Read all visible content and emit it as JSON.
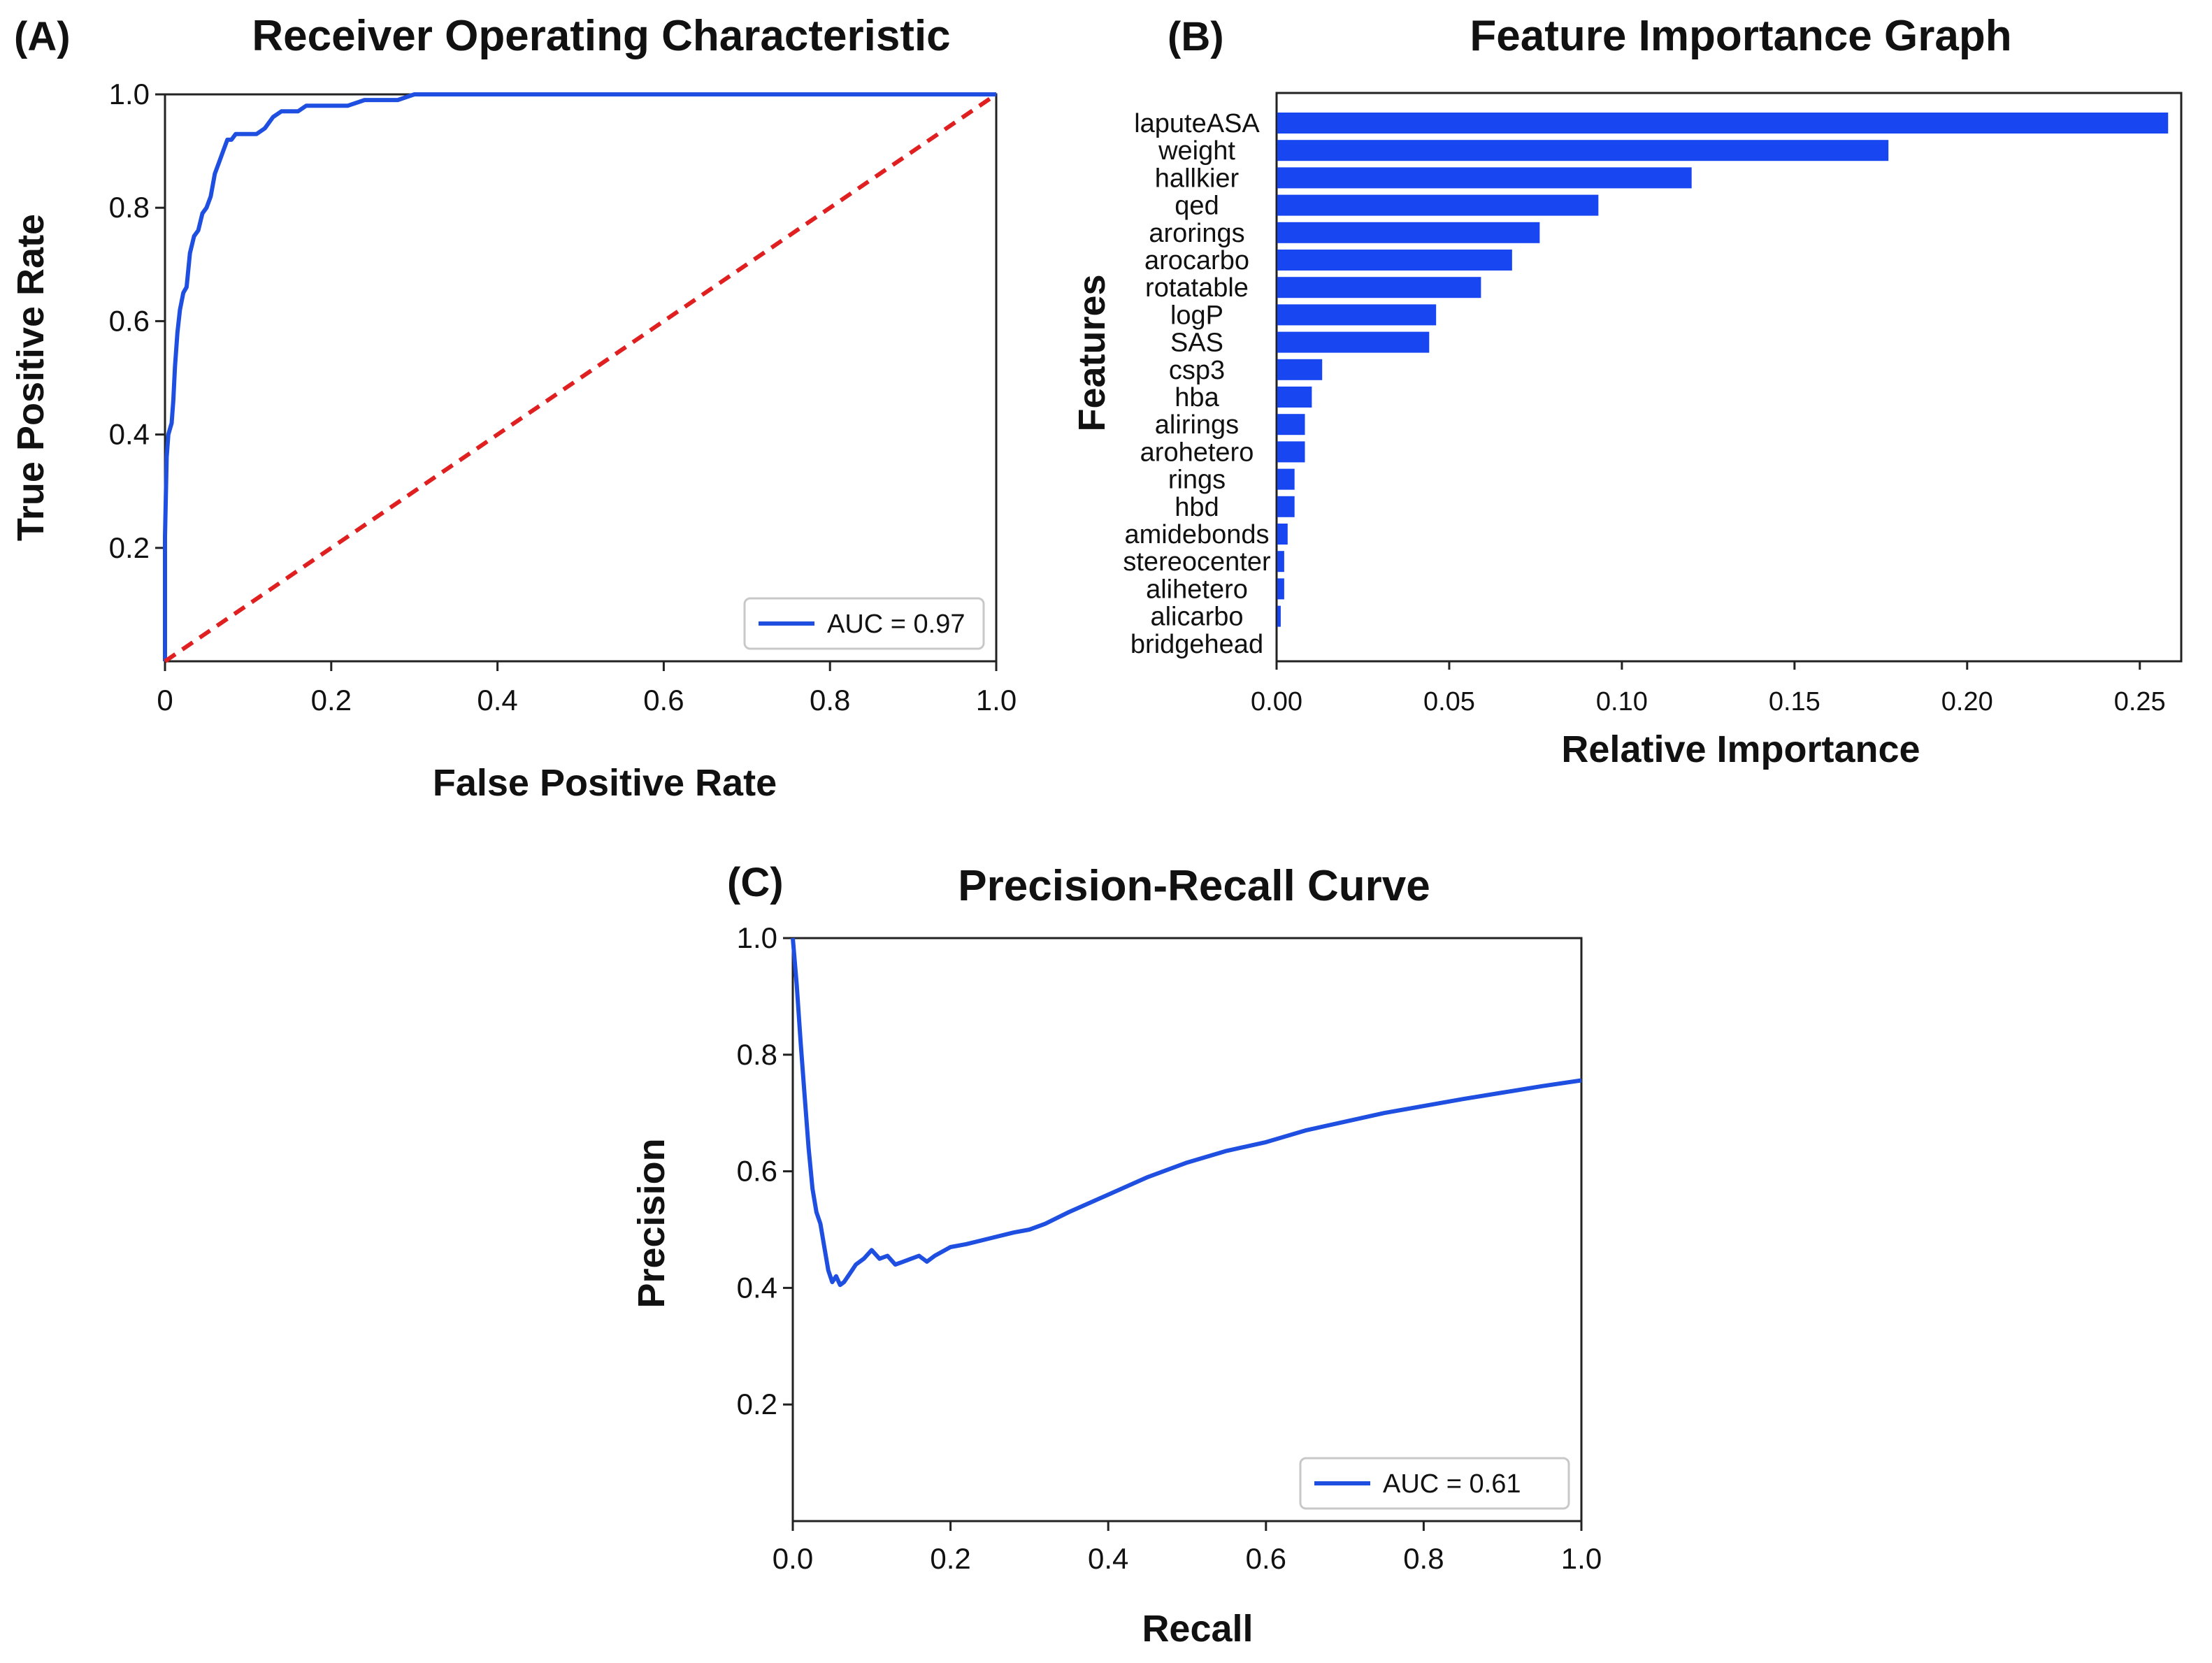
{
  "panels": {
    "a": {
      "letter": "(A)",
      "title": "Receiver Operating Characteristic",
      "xlabel": "False Positive Rate",
      "ylabel": "True Positive Rate",
      "legend": "AUC = 0.97"
    },
    "b": {
      "letter": "(B)",
      "title": "Feature Importance Graph",
      "xlabel": "Relative Importance",
      "ylabel": "Features"
    },
    "c": {
      "letter": "(C)",
      "title": "Precision-Recall Curve",
      "xlabel": "Recall",
      "ylabel": "Precision",
      "legend": "AUC = 0.61"
    }
  },
  "chart_data": [
    {
      "type": "line",
      "title": "Receiver Operating Characteristic",
      "xlabel": "False Positive Rate",
      "ylabel": "True Positive Rate",
      "xlim": [
        0,
        1
      ],
      "ylim": [
        0,
        1
      ],
      "xticks": [
        "0",
        "0.2",
        "0.4",
        "0.6",
        "0.8",
        "1.0"
      ],
      "xtick_values": [
        0,
        0.2,
        0.4,
        0.6,
        0.8,
        1.0
      ],
      "yticks": [
        "0.2",
        "0.4",
        "0.6",
        "0.8",
        "1.0"
      ],
      "ytick_values": [
        0.2,
        0.4,
        0.6,
        0.8,
        1.0
      ],
      "legend_position": "bottom-right",
      "grid": false,
      "series": [
        {
          "name": "AUC = 0.97",
          "color": "#1f4fe0",
          "x": [
            0,
            0,
            0.002,
            0.004,
            0.006,
            0.008,
            0.01,
            0.012,
            0.015,
            0.018,
            0.022,
            0.026,
            0.03,
            0.035,
            0.04,
            0.045,
            0.05,
            0.055,
            0.06,
            0.065,
            0.07,
            0.075,
            0.08,
            0.085,
            0.09,
            0.1,
            0.11,
            0.12,
            0.13,
            0.14,
            0.15,
            0.16,
            0.17,
            0.18,
            0.2,
            0.21,
            0.22,
            0.24,
            0.26,
            0.28,
            0.3,
            0.32,
            0.35,
            1.0
          ],
          "y": [
            0,
            0.22,
            0.36,
            0.4,
            0.41,
            0.42,
            0.46,
            0.52,
            0.58,
            0.62,
            0.65,
            0.66,
            0.72,
            0.75,
            0.76,
            0.79,
            0.8,
            0.82,
            0.86,
            0.88,
            0.9,
            0.92,
            0.92,
            0.93,
            0.93,
            0.93,
            0.93,
            0.94,
            0.96,
            0.97,
            0.97,
            0.97,
            0.98,
            0.98,
            0.98,
            0.98,
            0.98,
            0.99,
            0.99,
            0.99,
            1.0,
            1.0,
            1.0,
            1.0
          ]
        },
        {
          "name": "",
          "color": "#e02020",
          "dashed": true,
          "x": [
            0,
            1
          ],
          "y": [
            0,
            1
          ]
        }
      ]
    },
    {
      "type": "bar",
      "orientation": "horizontal",
      "title": "Feature Importance Graph",
      "xlabel": "Relative Importance",
      "ylabel": "Features",
      "xlim": [
        0,
        0.262
      ],
      "xticks": [
        "0.00",
        "0.05",
        "0.10",
        "0.15",
        "0.20",
        "0.25"
      ],
      "xtick_values": [
        0,
        0.05,
        0.1,
        0.15,
        0.2,
        0.25
      ],
      "bar_color": "#1846f0",
      "categories": [
        "laputeASA",
        "weight",
        "hallkier",
        "qed",
        "arorings",
        "arocarbo",
        "rotatable",
        "logP",
        "SAS",
        "csp3",
        "hba",
        "alirings",
        "arohetero",
        "rings",
        "hbd",
        "amidebonds",
        "stereocenter",
        "alihetero",
        "alicarbo",
        "bridgehead"
      ],
      "values": [
        0.258,
        0.177,
        0.12,
        0.093,
        0.076,
        0.068,
        0.059,
        0.046,
        0.044,
        0.013,
        0.01,
        0.008,
        0.008,
        0.005,
        0.005,
        0.003,
        0.002,
        0.002,
        0.001,
        0.0
      ],
      "grid": false
    },
    {
      "type": "line",
      "title": "Precision-Recall Curve",
      "xlabel": "Recall",
      "ylabel": "Precision",
      "xlim": [
        0,
        1
      ],
      "ylim": [
        0,
        1
      ],
      "xticks": [
        "0.0",
        "0.2",
        "0.4",
        "0.6",
        "0.8",
        "1.0"
      ],
      "xtick_values": [
        0,
        0.2,
        0.4,
        0.6,
        0.8,
        1.0
      ],
      "yticks": [
        "0.2",
        "0.4",
        "0.6",
        "0.8",
        "1.0"
      ],
      "ytick_values": [
        0.2,
        0.4,
        0.6,
        0.8,
        1.0
      ],
      "legend_position": "bottom-right",
      "grid": false,
      "series": [
        {
          "name": "AUC = 0.61",
          "color": "#1f4fe0",
          "x": [
            0,
            0.005,
            0.01,
            0.015,
            0.02,
            0.025,
            0.03,
            0.035,
            0.04,
            0.045,
            0.05,
            0.055,
            0.06,
            0.065,
            0.07,
            0.075,
            0.08,
            0.09,
            0.1,
            0.11,
            0.12,
            0.13,
            0.14,
            0.15,
            0.16,
            0.17,
            0.18,
            0.2,
            0.22,
            0.25,
            0.28,
            0.3,
            0.32,
            0.35,
            0.4,
            0.45,
            0.5,
            0.55,
            0.6,
            0.65,
            0.7,
            0.75,
            0.8,
            0.85,
            0.9,
            0.95,
            1.0
          ],
          "y": [
            1.0,
            0.92,
            0.82,
            0.73,
            0.64,
            0.57,
            0.53,
            0.51,
            0.47,
            0.43,
            0.41,
            0.42,
            0.405,
            0.41,
            0.42,
            0.43,
            0.44,
            0.45,
            0.465,
            0.45,
            0.455,
            0.44,
            0.445,
            0.45,
            0.455,
            0.445,
            0.455,
            0.47,
            0.475,
            0.485,
            0.495,
            0.5,
            0.51,
            0.53,
            0.56,
            0.59,
            0.615,
            0.635,
            0.65,
            0.67,
            0.685,
            0.7,
            0.712,
            0.724,
            0.735,
            0.746,
            0.756
          ]
        }
      ]
    }
  ]
}
